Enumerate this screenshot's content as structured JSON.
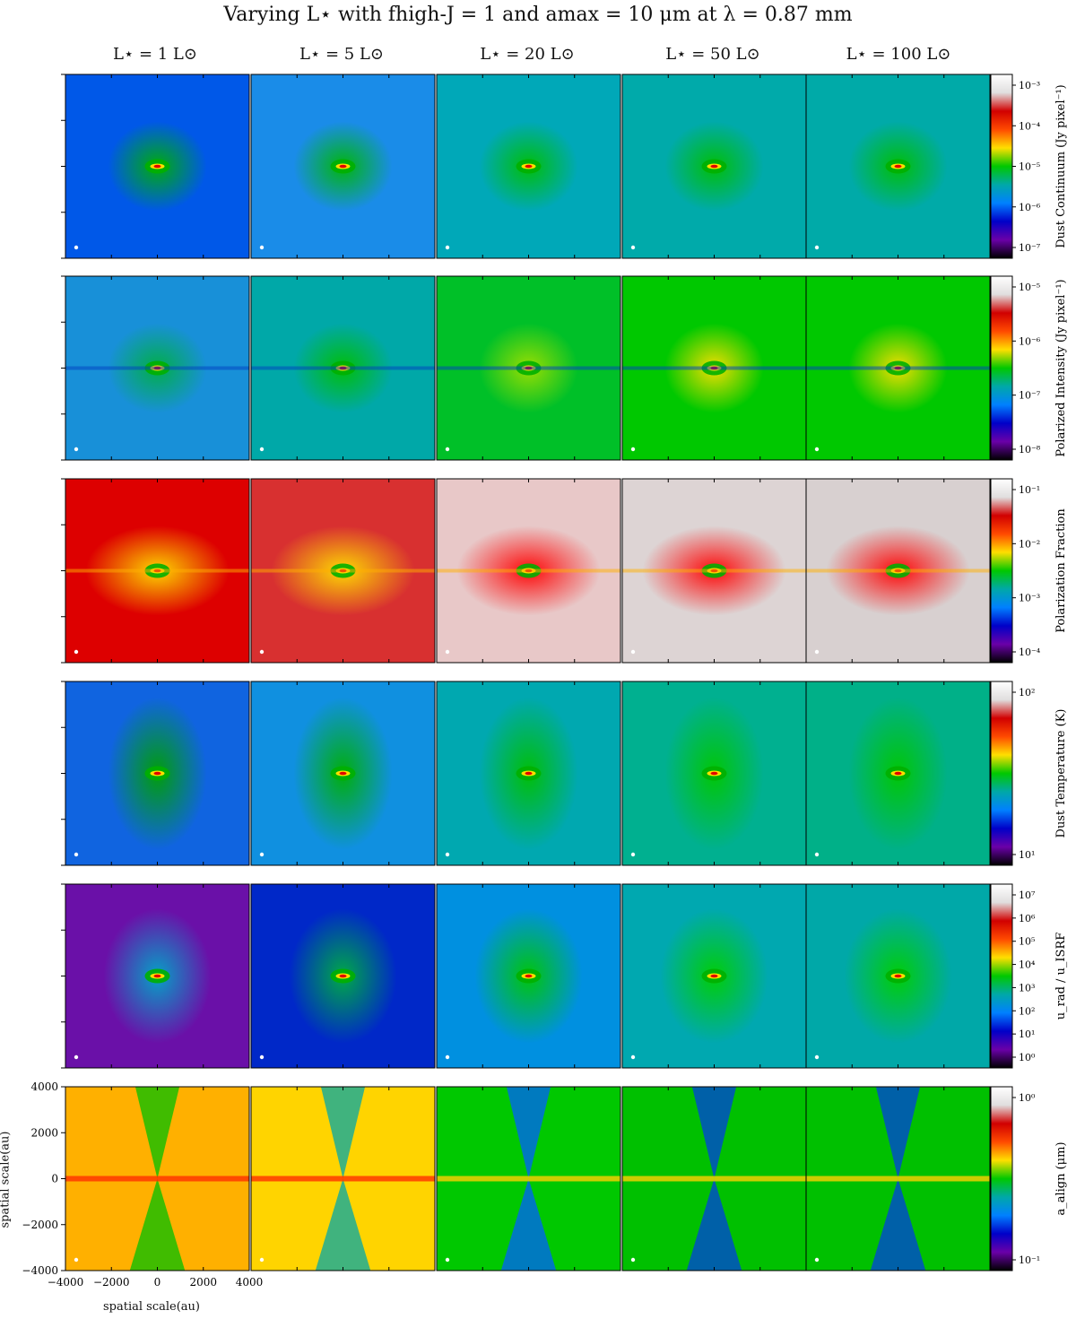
{
  "title": "Varying L⋆ with fₕᵢᵍₕ₋ⱼ = 1 and aₘₐₓ = 10 μm at λ = 0.87 mm",
  "title_display": "Varying L⋆ with fhigh-J = 1 and amax = 10 μm at λ = 0.87 mm",
  "columns": [
    "L⋆ = 1 L⊙",
    "L⋆ = 5 L⊙",
    "L⋆ = 20 L⊙",
    "L⋆ = 50 L⊙",
    "L⋆ = 100 L⊙"
  ],
  "rows": [
    {
      "label": "Dust Continuum (Jy pixel⁻¹)",
      "ticks": [
        "10⁻³",
        "10⁻⁴",
        "10⁻⁵",
        "10⁻⁶",
        "10⁻⁷"
      ]
    },
    {
      "label": "Polarized Intensity (Jy pixel⁻¹)",
      "ticks": [
        "10⁻⁵",
        "10⁻⁶",
        "10⁻⁷",
        "10⁻⁸"
      ]
    },
    {
      "label": "Polarization Fraction",
      "ticks": [
        "10⁻¹",
        "10⁻²",
        "10⁻³",
        "10⁻⁴"
      ]
    },
    {
      "label": "Dust Temperature (K)",
      "ticks": [
        "10²",
        "10¹"
      ]
    },
    {
      "label": "u_rad / u_ISRF",
      "ticks": [
        "10⁷",
        "10⁶",
        "10⁵",
        "10⁴",
        "10³",
        "10²",
        "10¹",
        "10⁰"
      ]
    },
    {
      "label": "a_align (μm)",
      "ticks": [
        "10⁰",
        "10⁻¹"
      ]
    }
  ],
  "xaxis": {
    "label": "spatial scale(au)",
    "ticks": [
      "−4000",
      "−2000",
      "0",
      "2000",
      "4000"
    ]
  },
  "yaxis": {
    "label": "spatial scale(au)",
    "ticks": [
      "4000",
      "2000",
      "0",
      "−2000",
      "−4000"
    ]
  },
  "chart_data": {
    "type": "heatmap",
    "title": "Varying L⋆ with fhigh-J = 1 and amax = 10 μm at λ = 0.87 mm",
    "x_range_au": [
      -4000,
      4000
    ],
    "y_range_au": [
      -4000,
      4000
    ],
    "luminosities_Lsun": [
      1,
      5,
      20,
      50,
      100
    ],
    "panels": [
      {
        "quantity": "Dust Continuum",
        "unit": "Jy pixel⁻¹",
        "scale": "log",
        "colorbar_range": [
          2e-08,
          0.002
        ]
      },
      {
        "quantity": "Polarized Intensity",
        "unit": "Jy pixel⁻¹",
        "scale": "log",
        "colorbar_range": [
          1.5e-09,
          3e-05
        ]
      },
      {
        "quantity": "Polarization Fraction",
        "unit": "",
        "scale": "log",
        "colorbar_range": [
          0.0001,
          0.2
        ]
      },
      {
        "quantity": "Dust Temperature",
        "unit": "K",
        "scale": "log",
        "colorbar_range": [
          4,
          300
        ]
      },
      {
        "quantity": "u_rad / u_ISRF",
        "unit": "",
        "scale": "log",
        "colorbar_range": [
          1,
          10000000.0
        ]
      },
      {
        "quantity": "a_align",
        "unit": "μm",
        "scale": "log",
        "colorbar_range": [
          0.03,
          8
        ]
      }
    ],
    "colormap": "nipy_spectral",
    "colorbar_colors": [
      "#ffffff",
      "#e0dede",
      "#d10000",
      "#ff4a00",
      "#ffdf00",
      "#00c800",
      "#00a8a8",
      "#0080ff",
      "#0000c8",
      "#6a00a8",
      "#000000"
    ]
  }
}
